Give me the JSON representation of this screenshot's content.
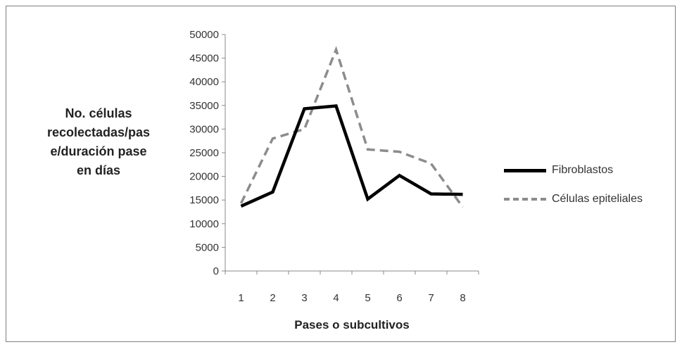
{
  "chart_data": {
    "type": "line",
    "title": "",
    "ylabel": "No. células recolectadas/pase/duración pase en días",
    "ylabel_lines": [
      "No. células",
      "recolectadas/pas",
      "e/duración pase",
      "en días"
    ],
    "xlabel": "Pases o subcultivos",
    "categories": [
      "1",
      "2",
      "3",
      "4",
      "5",
      "6",
      "7",
      "8"
    ],
    "ylim": [
      0,
      50000
    ],
    "yticks": [
      0,
      5000,
      10000,
      15000,
      20000,
      25000,
      30000,
      35000,
      40000,
      45000,
      50000
    ],
    "grid": false,
    "legend_position": "right",
    "series": [
      {
        "name": "Fibroblastos",
        "values": [
          13700,
          16700,
          34300,
          34900,
          15200,
          20200,
          16300,
          16200
        ],
        "color": "#000000",
        "style": "solid"
      },
      {
        "name": "Células epiteliales",
        "values": [
          14300,
          28000,
          30000,
          46800,
          25700,
          25200,
          22700,
          13500
        ],
        "color": "#8c8c8c",
        "style": "dashed"
      }
    ]
  }
}
